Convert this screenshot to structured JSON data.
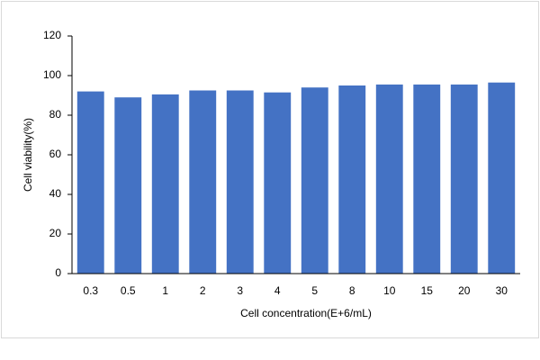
{
  "chart_data": {
    "type": "bar",
    "x_label": "Cell concentration(E+6/mL)",
    "y_label": "Cell viability(%)",
    "categories": [
      "0.3",
      "0.5",
      "1",
      "2",
      "3",
      "4",
      "5",
      "8",
      "10",
      "15",
      "20",
      "30"
    ],
    "values": [
      92,
      89,
      90.5,
      92.5,
      92.5,
      91.5,
      94,
      95,
      95.5,
      95.5,
      95.5,
      96.5
    ],
    "color": "#4472c4",
    "ylim": [
      0,
      120
    ],
    "yticks": [
      0,
      20,
      40,
      60,
      80,
      100,
      120
    ],
    "grid": false
  }
}
